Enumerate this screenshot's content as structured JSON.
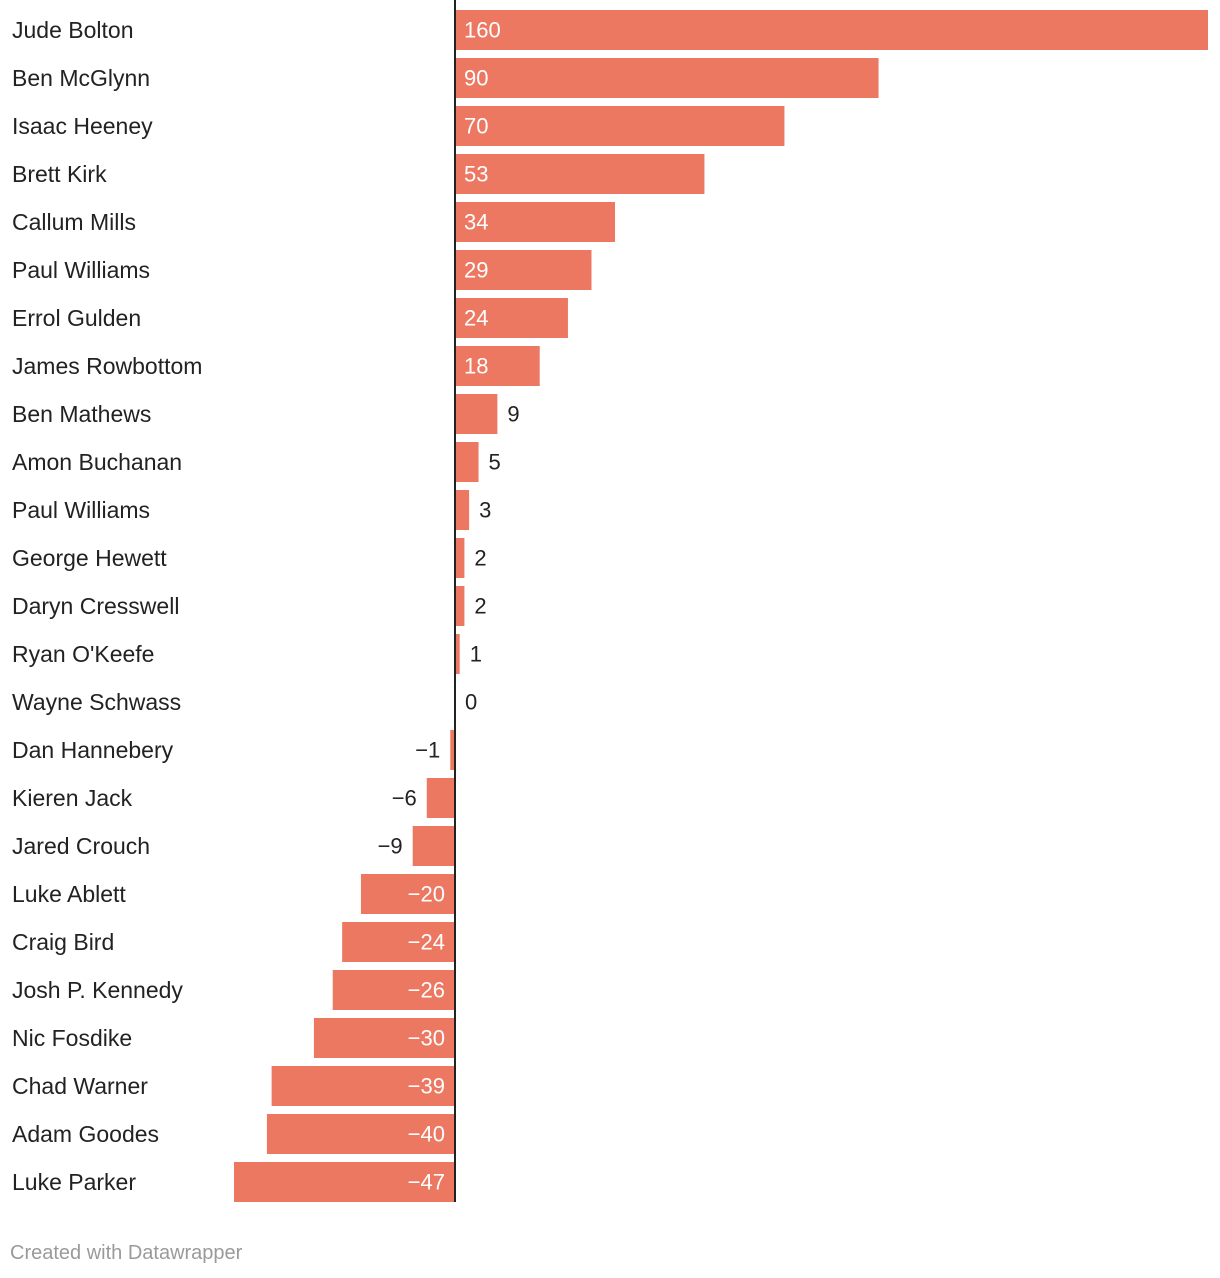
{
  "chart_data": {
    "type": "bar",
    "orientation": "horizontal",
    "categories": [
      "Jude Bolton",
      "Ben McGlynn",
      "Isaac Heeney",
      "Brett Kirk",
      "Callum Mills",
      "Paul Williams",
      "Errol Gulden",
      "James Rowbottom",
      "Ben Mathews",
      "Amon Buchanan",
      "Paul Williams",
      "George Hewett",
      "Daryn Cresswell",
      "Ryan O'Keefe",
      "Wayne Schwass",
      "Dan Hannebery",
      "Kieren Jack",
      "Jared Crouch",
      "Luke Ablett",
      "Craig Bird",
      "Josh P. Kennedy",
      "Nic Fosdike",
      "Chad Warner",
      "Adam Goodes",
      "Luke Parker"
    ],
    "values": [
      160,
      90,
      70,
      53,
      34,
      29,
      24,
      18,
      9,
      5,
      3,
      2,
      2,
      1,
      0,
      -1,
      -6,
      -9,
      -20,
      -24,
      -26,
      -30,
      -39,
      -40,
      -47
    ],
    "value_labels": [
      "160",
      "90",
      "70",
      "53",
      "34",
      "29",
      "24",
      "18",
      "9",
      "5",
      "3",
      "2",
      "2",
      "1",
      "0",
      "−1",
      "−6",
      "−9",
      "−20",
      "−24",
      "−26",
      "−30",
      "−39",
      "−40",
      "−47"
    ],
    "xlim": [
      -47,
      160
    ],
    "bar_color": "#ec7862",
    "inside_label_color": "#ffffff",
    "outside_label_color": "#222222",
    "axis_line_color": "#222222",
    "grid": false,
    "title": "",
    "xlabel": "",
    "ylabel": ""
  },
  "footer": {
    "credit": "Created with Datawrapper"
  }
}
